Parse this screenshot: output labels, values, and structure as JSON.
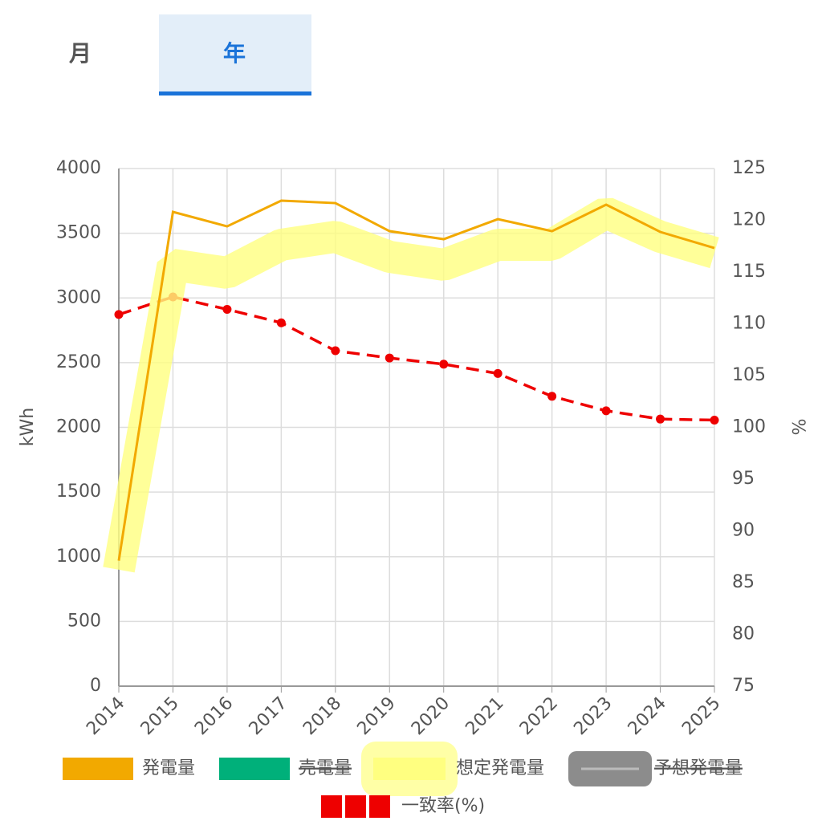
{
  "tabs": {
    "items": [
      "月",
      "年"
    ],
    "selected": 1
  },
  "chart_data": {
    "type": "line",
    "categories": [
      "2014",
      "2015",
      "2016",
      "2017",
      "2018",
      "2019",
      "2020",
      "2021",
      "2022",
      "2023",
      "2024",
      "2025"
    ],
    "ylabel": "kWh",
    "y2label": "%",
    "ylim": [
      0,
      4000
    ],
    "yticks": [
      0,
      500,
      1000,
      1500,
      2000,
      2500,
      3000,
      3500,
      4000
    ],
    "y2lim": [
      75,
      125
    ],
    "y2ticks": [
      75,
      80,
      85,
      90,
      95,
      100,
      105,
      110,
      115,
      120,
      125
    ],
    "grid": true,
    "series": [
      {
        "name": "発電量",
        "color": "#f2a900",
        "style": "line",
        "values": [
          970,
          3665,
          3553,
          3752,
          3733,
          3516,
          3454,
          3609,
          3516,
          3721,
          3510,
          3386
        ]
      },
      {
        "name": "売電量",
        "color": "#00b07a",
        "hidden": true
      },
      {
        "name": "想定発電量",
        "color": "#ffff80",
        "style": "band",
        "values": [
          900,
          3256,
          3194,
          3411,
          3473,
          3318,
          3256,
          3411,
          3411,
          3659,
          3473,
          3349
        ]
      },
      {
        "name": "予想発電量",
        "color": "#8c8c8c",
        "hidden": true
      },
      {
        "name": "一致率(%)",
        "color": "#ee0000",
        "style": "dashed",
        "axis": "y2",
        "values": [
          110.9,
          112.6,
          111.4,
          110.1,
          107.4,
          106.7,
          106.1,
          105.2,
          103.0,
          101.6,
          100.8,
          100.7
        ]
      }
    ]
  }
}
